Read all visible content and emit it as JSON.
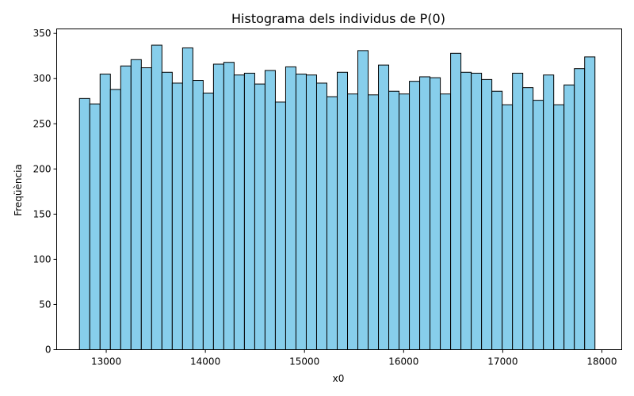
{
  "chart_data": {
    "type": "bar",
    "title": "Histograma dels individus de P(0)",
    "xlabel": "x0",
    "ylabel": "Freqüència",
    "bar_color": "#87ceeb",
    "edge_color": "#000000",
    "xlim": [
      12500,
      18200
    ],
    "ylim": [
      0,
      355
    ],
    "xticks": [
      13000,
      14000,
      15000,
      16000,
      17000,
      18000
    ],
    "yticks": [
      0,
      50,
      100,
      150,
      200,
      250,
      300,
      350
    ],
    "bin_start": 12730,
    "bin_width": 104,
    "values": [
      278,
      272,
      305,
      288,
      314,
      321,
      312,
      337,
      307,
      295,
      334,
      298,
      284,
      316,
      318,
      304,
      306,
      294,
      309,
      274,
      313,
      305,
      304,
      295,
      280,
      307,
      283,
      331,
      282,
      315,
      286,
      283,
      297,
      302,
      301,
      283,
      328,
      307,
      306,
      299,
      286,
      271,
      306,
      290,
      276,
      304,
      271,
      293,
      311,
      324
    ],
    "grid": false
  }
}
